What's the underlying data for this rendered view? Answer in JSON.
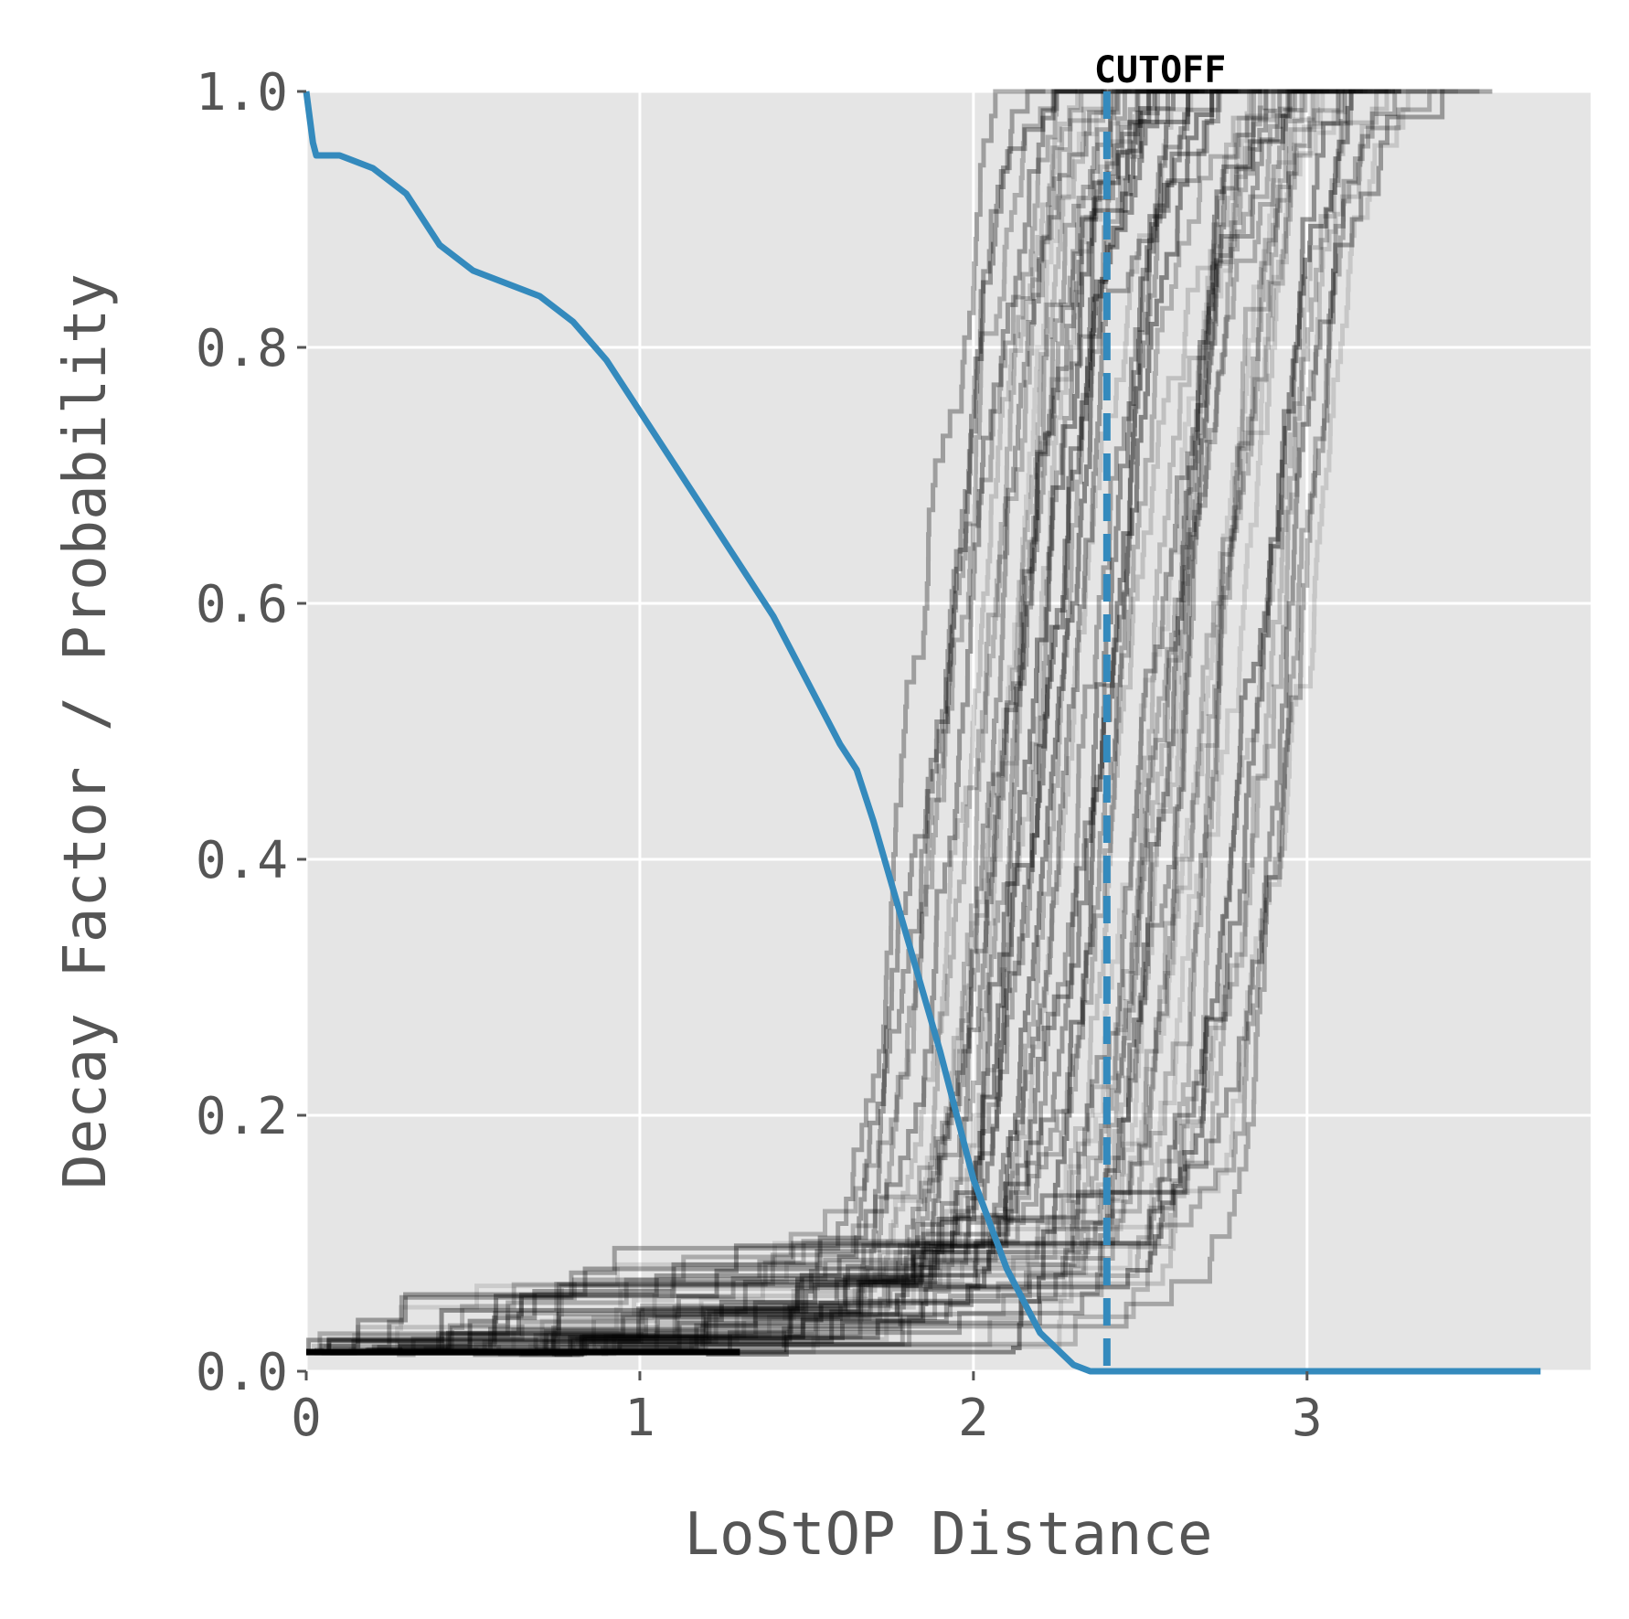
{
  "chart_data": {
    "type": "line",
    "title": "",
    "xlabel": "LoStOP Distance",
    "ylabel": "Decay Factor / Probability",
    "xlim": [
      0,
      3.85
    ],
    "ylim": [
      0,
      1.0
    ],
    "xticks": [
      0,
      1,
      2,
      3
    ],
    "xtick_labels": [
      "0",
      "1",
      "2",
      "3"
    ],
    "yticks": [
      0.0,
      0.2,
      0.4,
      0.6,
      0.8,
      1.0
    ],
    "ytick_labels": [
      "0.0",
      "0.2",
      "0.4",
      "0.6",
      "0.8",
      "1.0"
    ],
    "grid": true,
    "background": "#e5e5e5",
    "decay_color": "#348abd",
    "ecdf_color": "#000000",
    "cutoff": {
      "x": 2.4,
      "label": "CUTOFF",
      "color": "#348abd"
    },
    "decay_curve": {
      "x": [
        0,
        0.01,
        0.02,
        0.03,
        0.1,
        0.2,
        0.3,
        0.35,
        0.4,
        0.5,
        0.6,
        0.7,
        0.8,
        0.9,
        1.0,
        1.1,
        1.2,
        1.3,
        1.35,
        1.4,
        1.5,
        1.6,
        1.65,
        1.7,
        1.8,
        1.9,
        2.0,
        2.1,
        2.2,
        2.3,
        2.35,
        2.4,
        3.7
      ],
      "y": [
        1.0,
        0.98,
        0.96,
        0.95,
        0.95,
        0.94,
        0.92,
        0.9,
        0.88,
        0.86,
        0.85,
        0.84,
        0.82,
        0.79,
        0.75,
        0.71,
        0.67,
        0.63,
        0.61,
        0.59,
        0.54,
        0.49,
        0.47,
        0.43,
        0.34,
        0.25,
        0.15,
        0.08,
        0.03,
        0.005,
        0.0,
        0.0,
        0.0
      ]
    },
    "ecdf_samples": {
      "count": 60,
      "x_median_range": [
        1.75,
        3.0
      ],
      "x_spread": 0.38,
      "x_max": 3.7,
      "note_on_display": ""
    }
  }
}
